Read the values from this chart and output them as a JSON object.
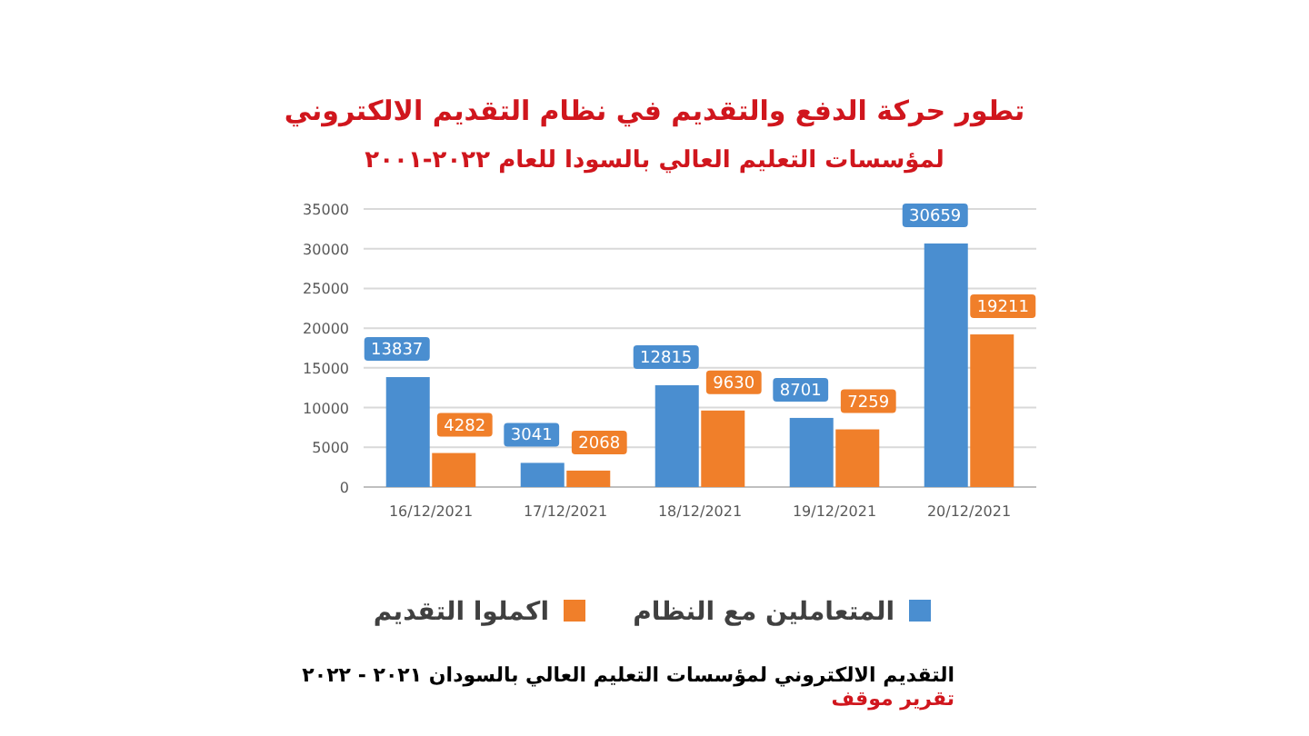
{
  "chart_data": {
    "type": "bar",
    "title": "تطور حركة الدفع والتقديم في نظام التقديم الالكتروني",
    "subtitle": "لمؤسسات التعليم العالي بالسودا للعام ٢٠٢٢-٢٠٠١",
    "categories": [
      "16/12/2021",
      "17/12/2021",
      "18/12/2021",
      "19/12/2021",
      "20/12/2021"
    ],
    "series": [
      {
        "name": "المتعاملين مع النظام",
        "color": "#4a8ed0",
        "values": [
          13837,
          3041,
          12815,
          8701,
          30659
        ]
      },
      {
        "name": "اكملوا التقديم",
        "color": "#f07f2a",
        "values": [
          4282,
          2068,
          9630,
          7259,
          19211
        ]
      }
    ],
    "ylim": [
      0,
      35000
    ],
    "yticks": [
      0,
      5000,
      10000,
      15000,
      20000,
      25000,
      30000,
      35000
    ],
    "grid": "y",
    "legend": "bottom",
    "data_labels": true,
    "annotations": [
      "التقديم الالكتروني لمؤسسات التعليم العالي بالسودان ٢٠٢١ - ٢٠٢٢",
      "تقرير موقف"
    ]
  }
}
